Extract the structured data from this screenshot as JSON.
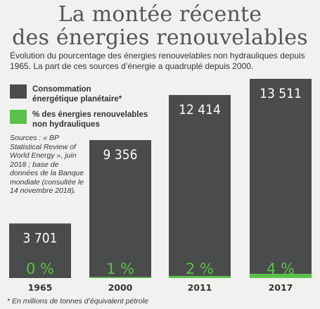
{
  "title_line1": "La montée récente",
  "title_line2": "des énergies renouvelables",
  "subtitle": "Évolution du pourcentage des énergies renouvelables non hydrauliques depuis 1965. La part de ces sources d’énergie a quadruplé depuis 2000.",
  "legend": {
    "consumption_label": "Consommation énergétique planétaire*",
    "renewables_label": "% des énergies renouvelables non hydrauliques"
  },
  "sources": "Sources : « BP Statistical Review of World Energy », juin 2018 ; base de données de la Banque mondiale (consultée le 14 novembre 2018).",
  "footnote": "* En millions de tonnes d’équivalent pétrole",
  "colors": {
    "bar": "#4a4b4b",
    "renewable": "#5ac24a",
    "background": "#f1f1f0"
  },
  "chart_data": {
    "type": "bar",
    "categories": [
      "1965",
      "2000",
      "2011",
      "2017"
    ],
    "series": [
      {
        "name": "Consommation énergétique planétaire*",
        "values": [
          3701,
          9356,
          12414,
          13511
        ],
        "labels": [
          "3 701",
          "9 356",
          "12 414",
          "13 511"
        ]
      },
      {
        "name": "% des énergies renouvelables non hydrauliques",
        "values": [
          0,
          1,
          2,
          4
        ],
        "labels": [
          "0 %",
          "1 %",
          "2 %",
          "4 %"
        ]
      }
    ],
    "ylim": [
      0,
      13511
    ]
  }
}
